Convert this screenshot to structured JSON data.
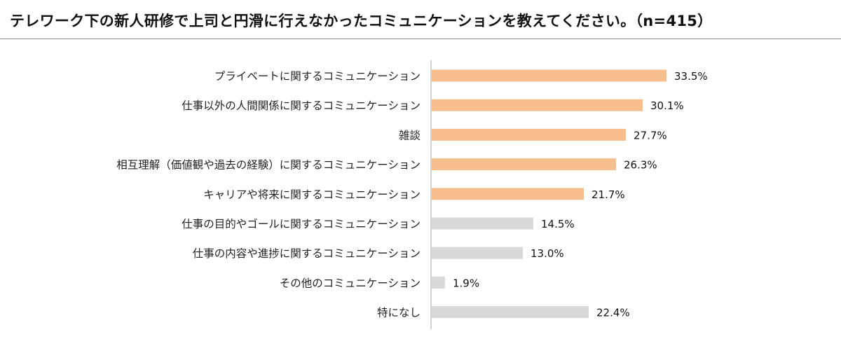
{
  "title": "テレワーク下の新人研修で上司と円滑に行えなかったコミュニケーションを教えてください。（n=415）",
  "colors": {
    "highlight": "#f8bf8e",
    "other": "#d9d9d9",
    "axis": "#a6a6a6"
  },
  "chart_data": {
    "type": "bar",
    "orientation": "horizontal",
    "title": "テレワーク下の新人研修で上司と円滑に行えなかったコミュニケーションを教えてください。（n=415）",
    "unit": "%",
    "xlim": [
      0,
      100
    ],
    "grid": false,
    "categories": [
      "プライベートに関するコミュニケーション",
      "仕事以外の人間関係に関するコミュニケーション",
      "雑談",
      "相互理解（価値観や過去の経験）に関するコミュニケーション",
      "キャリアや将来に関するコミュニケーション",
      "仕事の目的やゴールに関するコミュニケーション",
      "仕事の内容や進捗に関するコミュニケーション",
      "その他のコミュニケーション",
      "特になし"
    ],
    "values": [
      33.5,
      30.1,
      27.7,
      26.3,
      21.7,
      14.5,
      13.0,
      1.9,
      22.4
    ],
    "labels": [
      "33.5%",
      "30.1%",
      "27.7%",
      "26.3%",
      "21.7%",
      "14.5%",
      "13.0%",
      "1.9%",
      "22.4%"
    ],
    "highlighted": [
      true,
      true,
      true,
      true,
      true,
      false,
      false,
      false,
      false
    ]
  }
}
